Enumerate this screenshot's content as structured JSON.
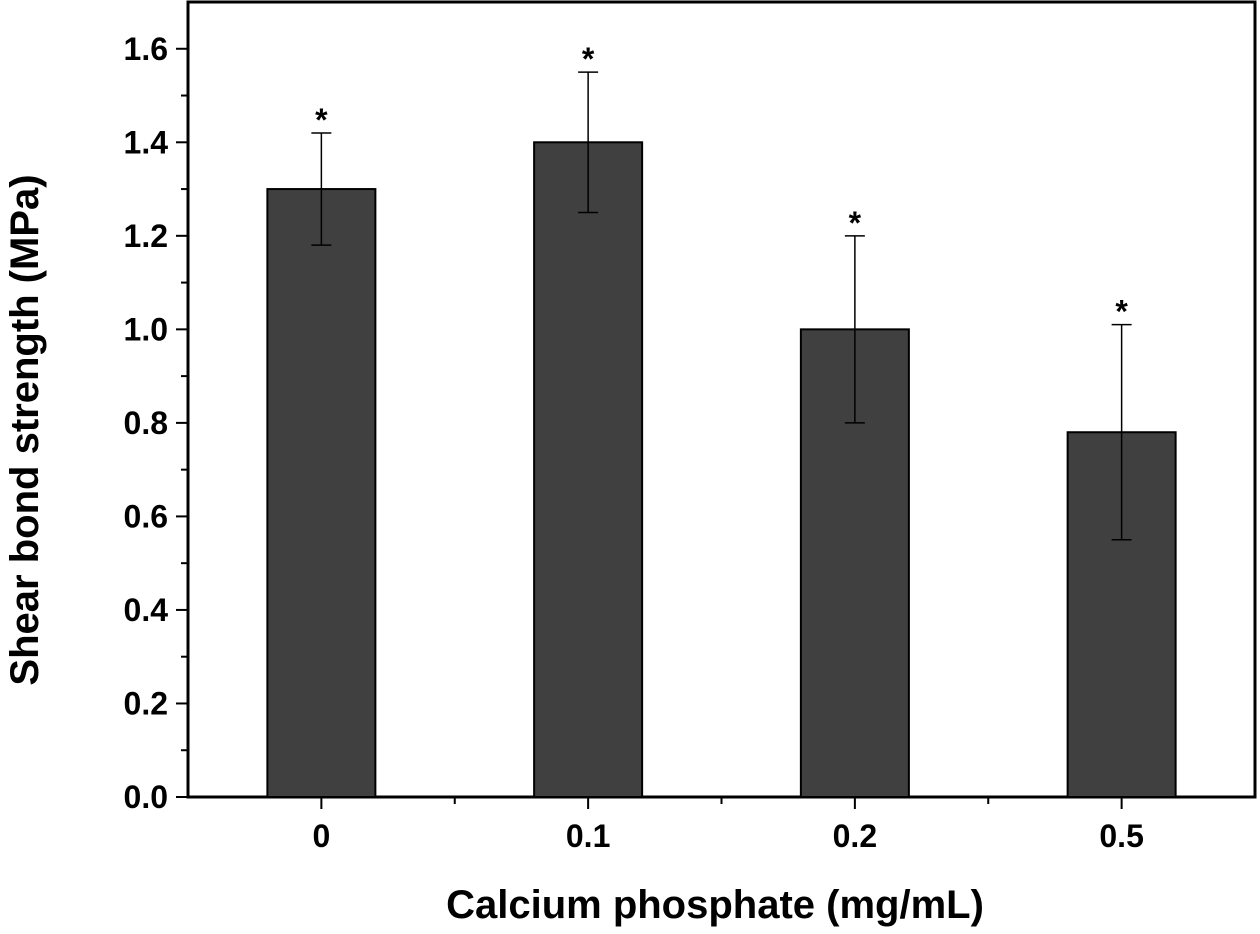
{
  "chart_data": {
    "type": "bar",
    "title": "",
    "xlabel": "Calcium phosphate (mg/mL)",
    "ylabel": "Shear bond strength (MPa)",
    "categories": [
      "0",
      "0.1",
      "0.2",
      "0.5"
    ],
    "values": [
      1.3,
      1.4,
      1.0,
      0.78
    ],
    "errors": [
      0.12,
      0.15,
      0.2,
      0.23
    ],
    "annotations": [
      "*",
      "*",
      "*",
      "*"
    ],
    "ylim": [
      0,
      1.7
    ],
    "yticks": [
      "0.0",
      "0.2",
      "0.4",
      "0.6",
      "0.8",
      "1.0",
      "1.2",
      "1.4",
      "1.6"
    ],
    "bar_color": "#404040",
    "grid": false
  }
}
